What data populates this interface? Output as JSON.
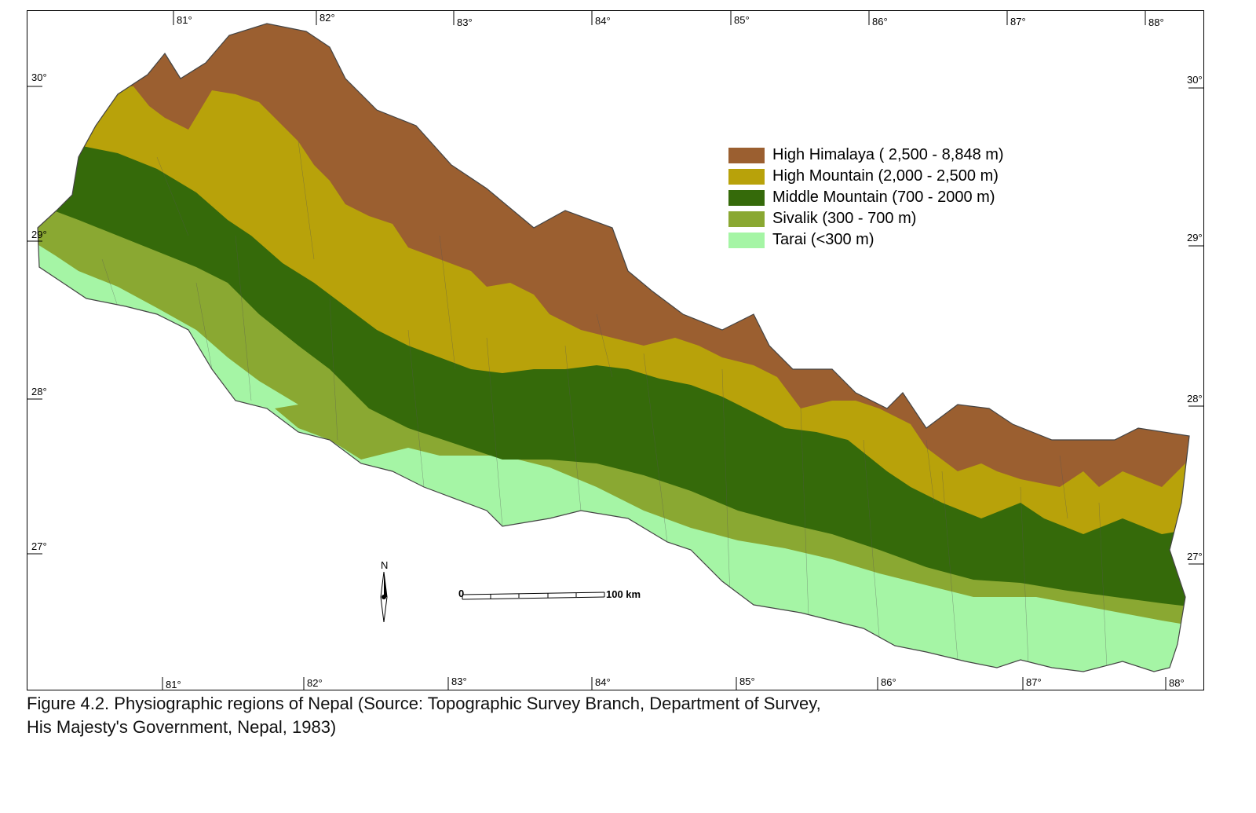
{
  "map": {
    "longitude_ticks_top": [
      "81°",
      "82°",
      "83°",
      "84°",
      "85°",
      "86°",
      "87°",
      "88°"
    ],
    "longitude_ticks_bottom": [
      "81°",
      "82°",
      "83°",
      "84°",
      "85°",
      "86°",
      "87°",
      "88°"
    ],
    "latitude_ticks": [
      "30°",
      "29°",
      "28°",
      "27°"
    ],
    "north_label": "N",
    "scale_start": "0",
    "scale_end": "100 km"
  },
  "legend": {
    "items": [
      {
        "label": "High Himalaya ( 2,500 - 8,848 m)",
        "color": "#9b5f30"
      },
      {
        "label": "High Mountain (2,000 - 2,500 m)",
        "color": "#b8a20a"
      },
      {
        "label": "Middle Mountain (700 - 2000 m)",
        "color": "#356a0a"
      },
      {
        "label": "Sivalik (300 - 700 m)",
        "color": "#8aa832"
      },
      {
        "label": "Tarai (<300 m)",
        "color": "#a5f5a5"
      }
    ]
  },
  "caption": {
    "line1": "Figure 4.2. Physiographic regions of Nepal (Source: Topographic Survey Branch, Department of Survey,",
    "line2": "His Majesty's Government, Nepal, 1983)"
  }
}
